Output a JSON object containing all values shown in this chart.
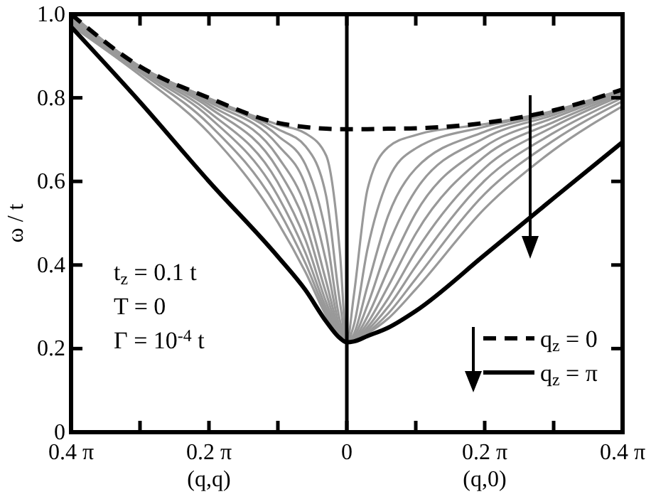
{
  "chart_data": {
    "type": "line",
    "ylabel": "ω / t",
    "x": [
      -1.2566,
      -0.9425,
      -0.6283,
      -0.3142,
      -0.1885,
      -0.0942,
      -0.0314,
      0,
      0.0314,
      0.0942,
      0.1885,
      0.3142,
      0.6283,
      0.9425,
      1.2566
    ],
    "xlim": [
      -1.2566,
      1.2566
    ],
    "xticks": [
      {
        "value": -1.2566,
        "label": "0.4 π"
      },
      {
        "value": -0.9425,
        "label": null
      },
      {
        "value": -0.6283,
        "label": "0.2 π"
      },
      {
        "value": -0.3142,
        "label": null
      },
      0,
      {
        "value": 0.3142,
        "label": null
      },
      {
        "value": 0.6283,
        "label": "0.2 π"
      },
      {
        "value": 0.9425,
        "label": null
      },
      {
        "value": 1.2566,
        "label": "0.4 π"
      }
    ],
    "ylim": [
      0,
      1
    ],
    "yticks": [
      0,
      0.2,
      0.4,
      0.6,
      0.8,
      {
        "value": 1,
        "label": "1.0"
      }
    ],
    "series": [
      {
        "color": "#999999",
        "values": [
          1.0,
          0.875,
          0.799,
          0.736,
          0.715,
          0.662,
          0.43,
          0.215,
          0.325,
          0.581,
          0.682,
          0.711,
          0.737,
          0.769,
          0.82
        ]
      },
      {
        "color": "#999999",
        "values": [
          0.997,
          0.875,
          0.798,
          0.725,
          0.684,
          0.565,
          0.311,
          0.215,
          0.255,
          0.438,
          0.604,
          0.679,
          0.731,
          0.767,
          0.819
        ]
      },
      {
        "color": "#999999",
        "values": [
          0.994,
          0.874,
          0.795,
          0.709,
          0.64,
          0.473,
          0.267,
          0.215,
          0.234,
          0.35,
          0.518,
          0.631,
          0.719,
          0.764,
          0.818
        ]
      },
      {
        "color": "#999999",
        "values": [
          0.991,
          0.873,
          0.79,
          0.687,
          0.591,
          0.408,
          0.249,
          0.215,
          0.227,
          0.304,
          0.447,
          0.579,
          0.704,
          0.759,
          0.816
        ]
      },
      {
        "color": "#999999",
        "values": [
          0.988,
          0.872,
          0.784,
          0.659,
          0.54,
          0.361,
          0.24,
          0.215,
          0.223,
          0.277,
          0.389,
          0.524,
          0.683,
          0.752,
          0.813
        ]
      },
      {
        "color": "#999999",
        "values": [
          0.985,
          0.87,
          0.777,
          0.629,
          0.498,
          0.332,
          0.235,
          0.215,
          0.221,
          0.261,
          0.349,
          0.475,
          0.66,
          0.742,
          0.81
        ]
      },
      {
        "color": "#999999",
        "values": [
          0.982,
          0.868,
          0.766,
          0.597,
          0.46,
          0.311,
          0.232,
          0.215,
          0.22,
          0.251,
          0.32,
          0.432,
          0.632,
          0.731,
          0.806
        ]
      },
      {
        "color": "#999999",
        "values": [
          0.979,
          0.865,
          0.754,
          0.565,
          0.429,
          0.297,
          0.229,
          0.215,
          0.219,
          0.244,
          0.3,
          0.397,
          0.602,
          0.716,
          0.8
        ]
      },
      {
        "color": "#999999",
        "values": [
          0.976,
          0.861,
          0.737,
          0.534,
          0.404,
          0.287,
          0.228,
          0.215,
          0.218,
          0.239,
          0.284,
          0.367,
          0.57,
          0.698,
          0.792
        ]
      },
      {
        "color": "#999999",
        "values": [
          0.973,
          0.854,
          0.716,
          0.502,
          0.383,
          0.279,
          0.227,
          0.215,
          0.218,
          0.236,
          0.272,
          0.342,
          0.535,
          0.675,
          0.78
        ]
      },
      {
        "name": "q$_{z}$ = 0",
        "color": "#000000",
        "line_style": "dashed",
        "values": [
          1.0,
          0.875,
          0.8,
          0.74,
          0.73,
          0.726,
          0.725,
          0.725,
          0.725,
          0.725,
          0.726,
          0.727,
          0.74,
          0.77,
          0.82
        ]
      },
      {
        "name": "q$_{z}$ = π",
        "color": "#000000",
        "line_style": "solid",
        "values": [
          0.97,
          0.79,
          0.6,
          0.42,
          0.34,
          0.265,
          0.225,
          0.215,
          0.217,
          0.23,
          0.25,
          0.29,
          0.424,
          0.56,
          0.694
        ]
      }
    ],
    "ref_lines": [
      {
        "axis": "x",
        "value": 0
      }
    ],
    "legend": "bottom right",
    "annotations": [
      "t$_{z}$ = 0.1 t",
      "T = 0",
      "Γ = 10$^{-4}$ t",
      "(q,q)",
      "(q,0)"
    ]
  }
}
